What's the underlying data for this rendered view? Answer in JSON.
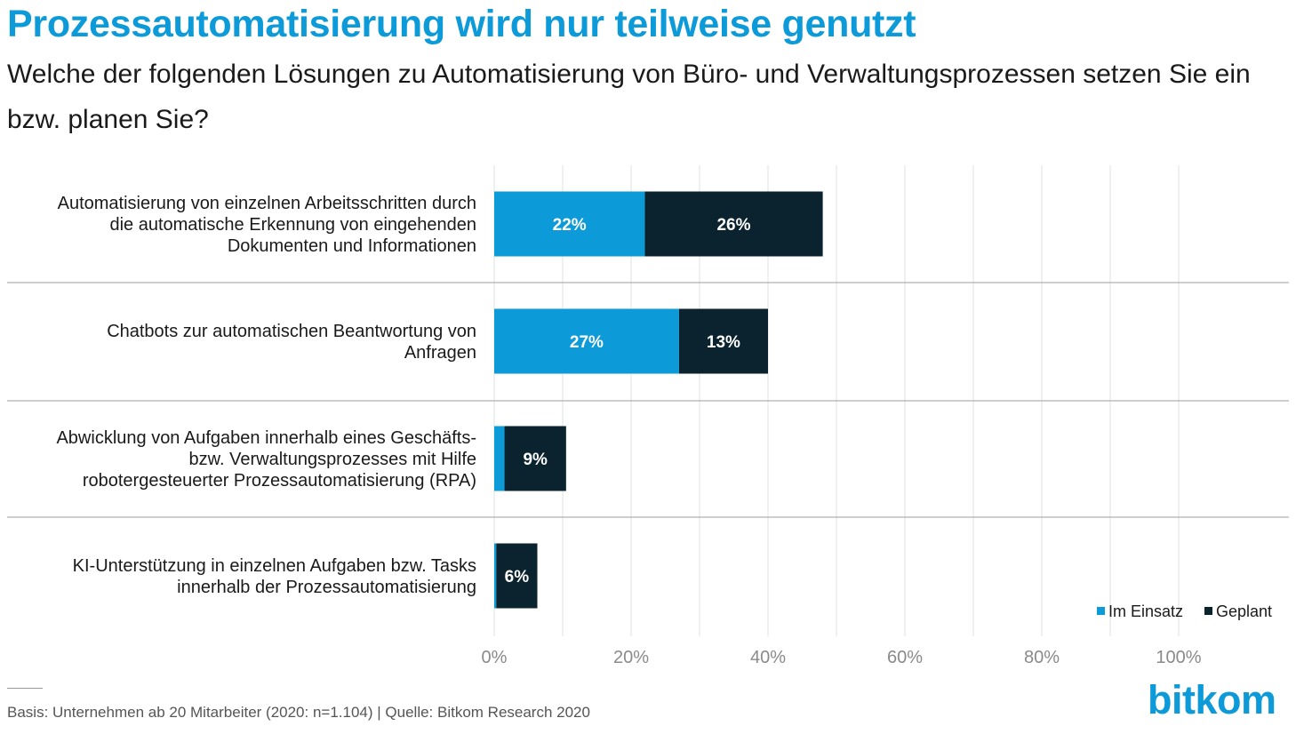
{
  "chart_data": {
    "type": "bar",
    "orientation": "horizontal",
    "stacked": true,
    "title": "Prozessautomatisierung wird nur teilweise genutzt",
    "subtitle": "Welche der folgenden Lösungen zu Automatisierung von Büro- und Verwaltungsprozessen setzen Sie ein bzw. planen Sie?",
    "categories": [
      [
        "Automatisierung von einzelnen Arbeitsschritten durch",
        "die automatische Erkennung von eingehenden",
        "Dokumenten und Informationen"
      ],
      [
        "Chatbots zur automatischen Beantwortung von",
        "Anfragen"
      ],
      [
        "Abwicklung von Aufgaben innerhalb eines Geschäfts-",
        "bzw. Verwaltungsprozesses mit Hilfe",
        "robotergesteuerter Prozessautomatisierung (RPA)"
      ],
      [
        "KI-Unterstützung in einzelnen Aufgaben bzw. Tasks",
        "innerhalb der Prozessautomatisierung"
      ]
    ],
    "series": [
      {
        "name": "Im Einsatz",
        "color": "#0d9ad8",
        "values": [
          22,
          27,
          1.5,
          0.3
        ],
        "labels": [
          "22%",
          "27%",
          "",
          ""
        ]
      },
      {
        "name": "Geplant",
        "color": "#0a232e",
        "values": [
          26,
          13,
          9,
          6
        ],
        "labels": [
          "26%",
          "13%",
          "9%",
          "6%"
        ]
      }
    ],
    "xlim": [
      0,
      100
    ],
    "xticks": [
      "0%",
      "20%",
      "40%",
      "60%",
      "80%",
      "100%"
    ],
    "grid": true,
    "legend": "bottom-right"
  },
  "footer": "Basis: Unternehmen ab 20 Mitarbeiter (2020: n=1.104) | Quelle: Bitkom Research 2020",
  "logo_text": "bitkom"
}
